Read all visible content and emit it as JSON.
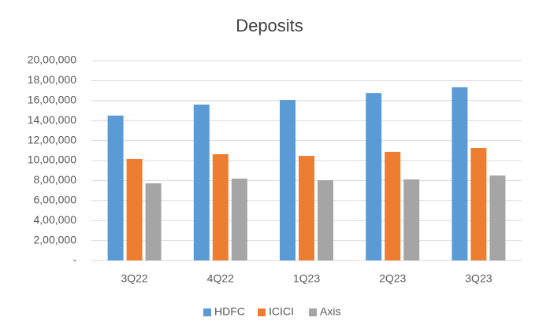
{
  "chart_data": {
    "type": "bar",
    "title": "Deposits",
    "categories": [
      "3Q22",
      "4Q22",
      "1Q23",
      "2Q23",
      "3Q23"
    ],
    "series": [
      {
        "name": "HDFC",
        "color": "#5b9bd5",
        "values": [
          1450000,
          1560000,
          1606000,
          1676000,
          1733000
        ]
      },
      {
        "name": "ICICI",
        "color": "#ed7d31",
        "values": [
          1016000,
          1063000,
          1047000,
          1087000,
          1126000
        ]
      },
      {
        "name": "Axis",
        "color": "#a5a5a5",
        "values": [
          772000,
          819000,
          803000,
          811000,
          850000
        ]
      }
    ],
    "ylim": [
      0,
      2000000
    ],
    "yticks": [
      {
        "value": 0,
        "label": "-"
      },
      {
        "value": 200000,
        "label": "2,00,000"
      },
      {
        "value": 400000,
        "label": "4,00,000"
      },
      {
        "value": 600000,
        "label": "6,00,000"
      },
      {
        "value": 800000,
        "label": "8,00,000"
      },
      {
        "value": 1000000,
        "label": "10,00,000"
      },
      {
        "value": 1200000,
        "label": "12,00,000"
      },
      {
        "value": 1400000,
        "label": "14,00,000"
      },
      {
        "value": 1600000,
        "label": "16,00,000"
      },
      {
        "value": 1800000,
        "label": "18,00,000"
      },
      {
        "value": 2000000,
        "label": "20,00,000"
      }
    ],
    "grid": true,
    "legend": "bottom"
  }
}
